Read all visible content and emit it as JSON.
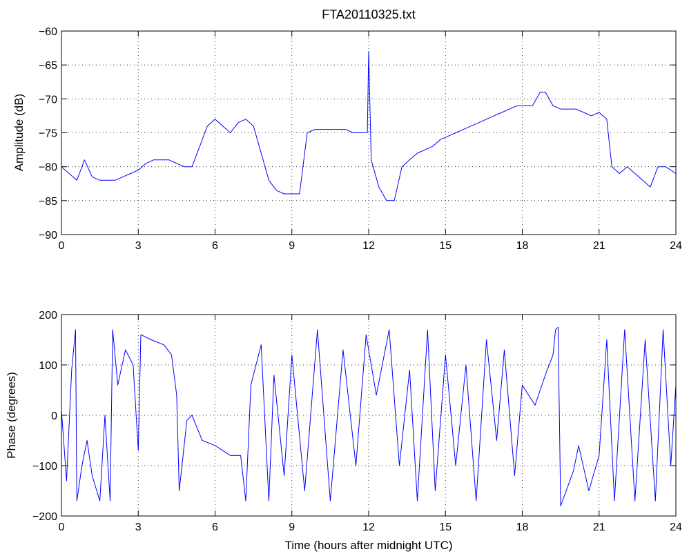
{
  "chart_data": [
    {
      "type": "line",
      "title": "FTA20110325.txt",
      "xlabel": "",
      "ylabel": "Amplitude (dB)",
      "xlim": [
        0,
        24
      ],
      "ylim": [
        -90,
        -60
      ],
      "xticks": [
        0,
        3,
        6,
        9,
        12,
        15,
        18,
        21,
        24
      ],
      "yticks": [
        -60,
        -65,
        -70,
        -75,
        -80,
        -85,
        -90
      ],
      "grid": true,
      "line_color": "#0000ff",
      "series": [
        {
          "x": [
            0,
            0.3,
            0.6,
            0.9,
            1.2,
            1.5,
            1.8,
            2.1,
            2.4,
            2.7,
            3.0,
            3.3,
            3.6,
            3.9,
            4.2,
            4.5,
            4.8,
            5.1,
            5.4,
            5.7,
            6.0,
            6.3,
            6.6,
            6.9,
            7.2,
            7.5,
            7.8,
            8.1,
            8.4,
            8.7,
            9.0,
            9.3,
            9.6,
            9.9,
            10.2,
            10.5,
            10.8,
            11.1,
            11.4,
            11.7,
            11.95,
            12.0,
            12.1,
            12.4,
            12.7,
            13.0,
            13.3,
            13.6,
            13.9,
            14.2,
            14.5,
            14.8,
            15.1,
            15.4,
            15.7,
            16.0,
            16.3,
            16.6,
            16.9,
            17.2,
            17.5,
            17.8,
            18.1,
            18.4,
            18.7,
            18.9,
            19.2,
            19.5,
            19.8,
            20.1,
            20.4,
            20.7,
            21.0,
            21.3,
            21.5,
            21.8,
            22.1,
            22.4,
            22.7,
            23.0,
            23.3,
            23.6,
            24.0
          ],
          "values": [
            -80,
            -81,
            -82,
            -79,
            -81.5,
            -82,
            -82,
            -82,
            -81.5,
            -81,
            -80.5,
            -79.5,
            -79,
            -79,
            -79,
            -79.5,
            -80,
            -80,
            -77,
            -74,
            -73,
            -74,
            -75,
            -73.5,
            -73,
            -74,
            -78,
            -82,
            -83.5,
            -84,
            -84,
            -84,
            -75,
            -74.5,
            -74.5,
            -74.5,
            -74.5,
            -74.5,
            -75,
            -75,
            -75,
            -63,
            -79,
            -83,
            -85,
            -85,
            -80,
            -79,
            -78,
            -77.5,
            -77,
            -76,
            -75.5,
            -75,
            -74.5,
            -74,
            -73.5,
            -73,
            -72.5,
            -72,
            -71.5,
            -71,
            -71,
            -71,
            -69,
            -69,
            -71,
            -71.5,
            -71.5,
            -71.5,
            -72,
            -72.5,
            -72,
            -73,
            -80,
            -81,
            -80,
            -81,
            -82,
            -83,
            -80,
            -80,
            -81
          ]
        }
      ]
    },
    {
      "type": "line",
      "title": "",
      "xlabel": "Time (hours after midnight UTC)",
      "ylabel": "Phase (degrees)",
      "xlim": [
        0,
        24
      ],
      "ylim": [
        -200,
        200
      ],
      "xticks": [
        0,
        3,
        6,
        9,
        12,
        15,
        18,
        21,
        24
      ],
      "yticks": [
        200,
        100,
        0,
        -100,
        -200
      ],
      "grid": true,
      "line_color": "#0000ff",
      "series": [
        {
          "x": [
            0,
            0.2,
            0.4,
            0.55,
            0.6,
            0.8,
            1.0,
            1.2,
            1.5,
            1.7,
            1.9,
            2.0,
            2.2,
            2.5,
            2.8,
            3.0,
            3.1,
            3.5,
            4.0,
            4.3,
            4.5,
            4.6,
            4.9,
            5.1,
            5.5,
            6.0,
            6.3,
            6.6,
            7.0,
            7.2,
            7.4,
            7.8,
            8.1,
            8.3,
            8.7,
            9.0,
            9.5,
            10.0,
            10.5,
            11.0,
            11.5,
            11.9,
            12.3,
            12.8,
            13.2,
            13.6,
            13.9,
            14.3,
            14.6,
            15.0,
            15.4,
            15.8,
            16.2,
            16.6,
            17.0,
            17.3,
            17.7,
            18.0,
            18.5,
            18.9,
            19.2,
            19.3,
            19.4,
            19.5,
            20.0,
            20.2,
            20.6,
            21.0,
            21.3,
            21.6,
            22.0,
            22.4,
            22.8,
            23.2,
            23.5,
            23.8,
            24.0
          ],
          "values": [
            10,
            -130,
            90,
            170,
            -170,
            -100,
            -50,
            -120,
            -170,
            0,
            -170,
            170,
            60,
            130,
            100,
            -70,
            160,
            150,
            140,
            120,
            40,
            -150,
            -10,
            0,
            -50,
            -60,
            -70,
            -80,
            -80,
            -170,
            60,
            140,
            -170,
            80,
            -120,
            120,
            -150,
            170,
            -170,
            130,
            -100,
            160,
            40,
            170,
            -100,
            90,
            -170,
            170,
            -150,
            120,
            -100,
            100,
            -170,
            150,
            -50,
            130,
            -120,
            60,
            20,
            80,
            120,
            170,
            175,
            -180,
            -110,
            -60,
            -150,
            -80,
            150,
            -170,
            170,
            -170,
            150,
            -170,
            170,
            -100,
            60
          ]
        }
      ]
    }
  ]
}
